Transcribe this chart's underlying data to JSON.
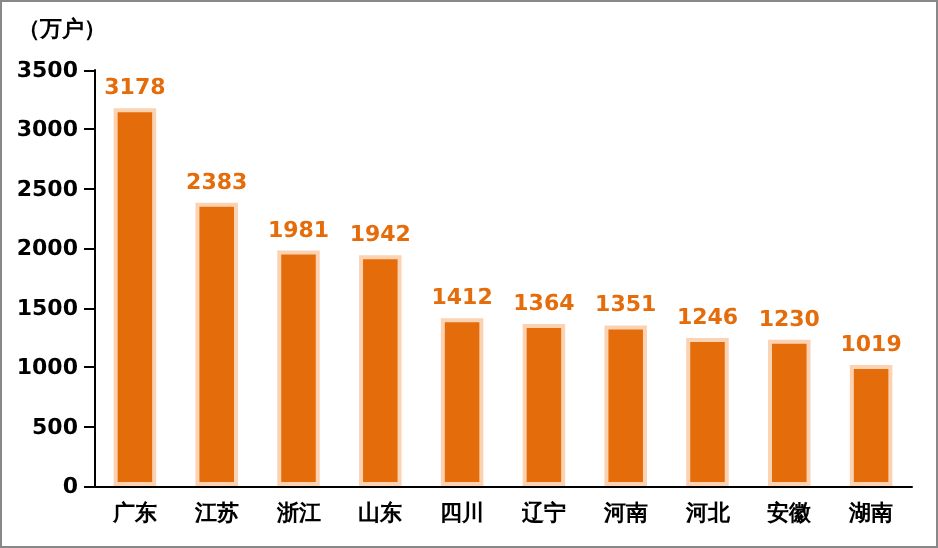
{
  "chart_data": {
    "type": "bar",
    "ylabel": "（万户）",
    "categories": [
      "广东",
      "江苏",
      "浙江",
      "山东",
      "四川",
      "辽宁",
      "河南",
      "河北",
      "安徽",
      "湖南"
    ],
    "values": [
      3178,
      2383,
      1981,
      1942,
      1412,
      1364,
      1351,
      1246,
      1230,
      1019
    ],
    "color": "#e46c0a",
    "data_labels": true,
    "ylim": [
      0,
      3500
    ],
    "yticks": [
      0,
      500,
      1000,
      1500,
      2000,
      2500,
      3000,
      3500
    ],
    "grid": false
  }
}
